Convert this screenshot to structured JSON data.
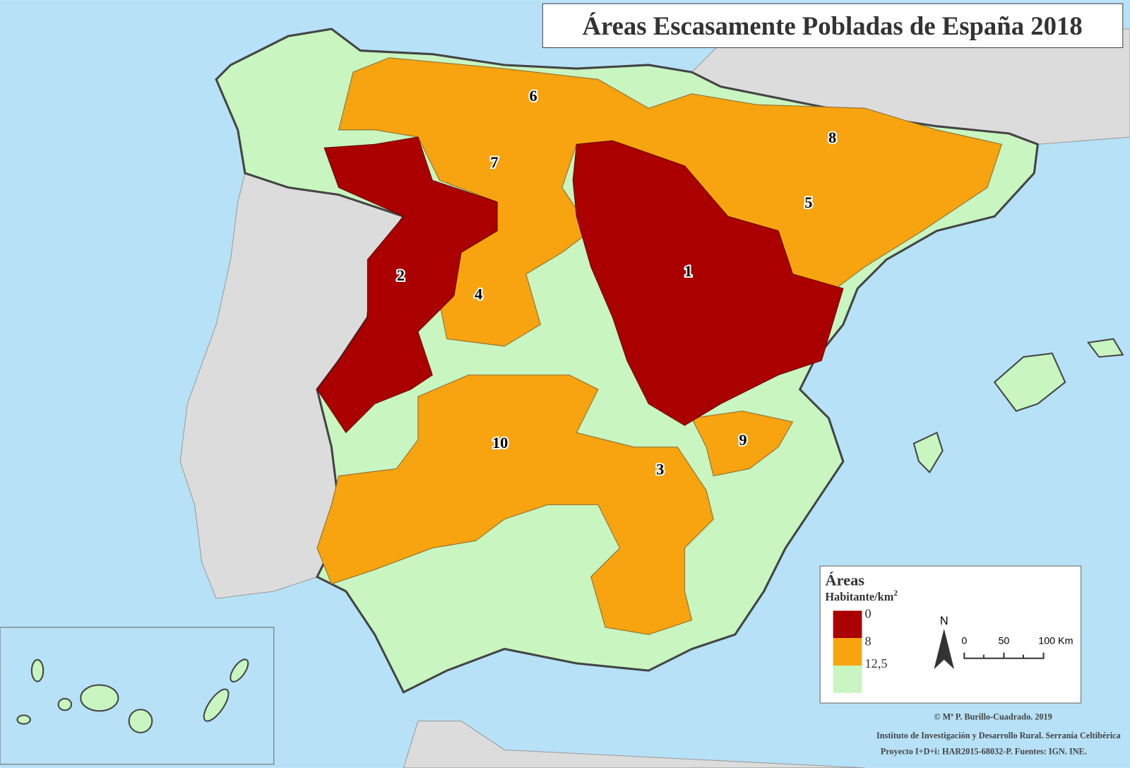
{
  "title": "Áreas Escasamente Pobladas de España 2018",
  "area_labels": [
    "1",
    "2",
    "3",
    "4",
    "5",
    "6",
    "7",
    "8",
    "9",
    "10"
  ],
  "legend": {
    "title": "Áreas",
    "unit": "Habitante/km",
    "unit_exponent": "2",
    "breaks": [
      "0",
      "8",
      "12,5"
    ]
  },
  "north": "N",
  "scale": {
    "labels": [
      "0",
      "50",
      "100 Km"
    ]
  },
  "credits": [
    "© Mª P. Burillo-Cuadrado. 2019",
    "Instituto de Investigación y Desarrollo Rural. Serranía Celtibérica",
    "Proyecto I+D+i: HAR2015-68032-P. Fuentes: IGN. INE."
  ]
}
